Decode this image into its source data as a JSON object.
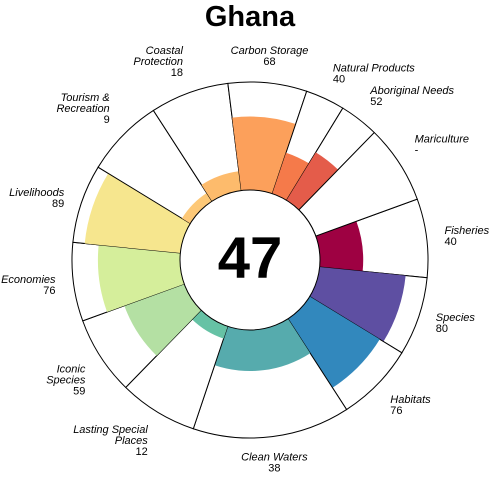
{
  "chart_data": {
    "type": "flower",
    "title": "Ghana",
    "score": "47",
    "petals": [
      {
        "label_lines": [
          "Fisheries"
        ],
        "value": 40,
        "display": "40",
        "weight": 1,
        "color": "#9e0142"
      },
      {
        "label_lines": [
          "Species"
        ],
        "value": 80,
        "display": "80",
        "weight": 1,
        "color": "#5e4fa2"
      },
      {
        "label_lines": [
          "Habitats"
        ],
        "value": 76,
        "display": "76",
        "weight": 1,
        "color": "#3288bd"
      },
      {
        "label_lines": [
          "Clean Waters"
        ],
        "value": 38,
        "display": "38",
        "weight": 2,
        "color": "#56abad"
      },
      {
        "label_lines": [
          "Lasting Special",
          "Places"
        ],
        "value": 12,
        "display": "12",
        "weight": 1,
        "color": "#66c2a5"
      },
      {
        "label_lines": [
          "Iconic",
          "Species"
        ],
        "value": 59,
        "display": "59",
        "weight": 1,
        "color": "#b4e0a3"
      },
      {
        "label_lines": [
          "Economies"
        ],
        "value": 76,
        "display": "76",
        "weight": 1,
        "color": "#d5ee9b"
      },
      {
        "label_lines": [
          "Livelihoods"
        ],
        "value": 89,
        "display": "89",
        "weight": 1,
        "color": "#f6e68e"
      },
      {
        "label_lines": [
          "Tourism &",
          "Recreation"
        ],
        "value": 9,
        "display": "9",
        "weight": 1,
        "color": "#fdc877"
      },
      {
        "label_lines": [
          "Coastal",
          "Protection"
        ],
        "value": 18,
        "display": "18",
        "weight": 1,
        "color": "#fdbb6c"
      },
      {
        "label_lines": [
          "Carbon Storage"
        ],
        "value": 68,
        "display": "68",
        "weight": 1,
        "color": "#fca05b"
      },
      {
        "label_lines": [
          "Natural Products"
        ],
        "value": 40,
        "display": "40",
        "weight": 0.5,
        "color": "#f57a4a"
      },
      {
        "label_lines": [
          "Aboriginal Needs"
        ],
        "value": 52,
        "display": "52",
        "weight": 0.5,
        "color": "#e45c4a"
      },
      {
        "label_lines": [
          "Mariculture"
        ],
        "value": null,
        "display": "-",
        "weight": 1,
        "color": "#ffffff"
      }
    ]
  }
}
